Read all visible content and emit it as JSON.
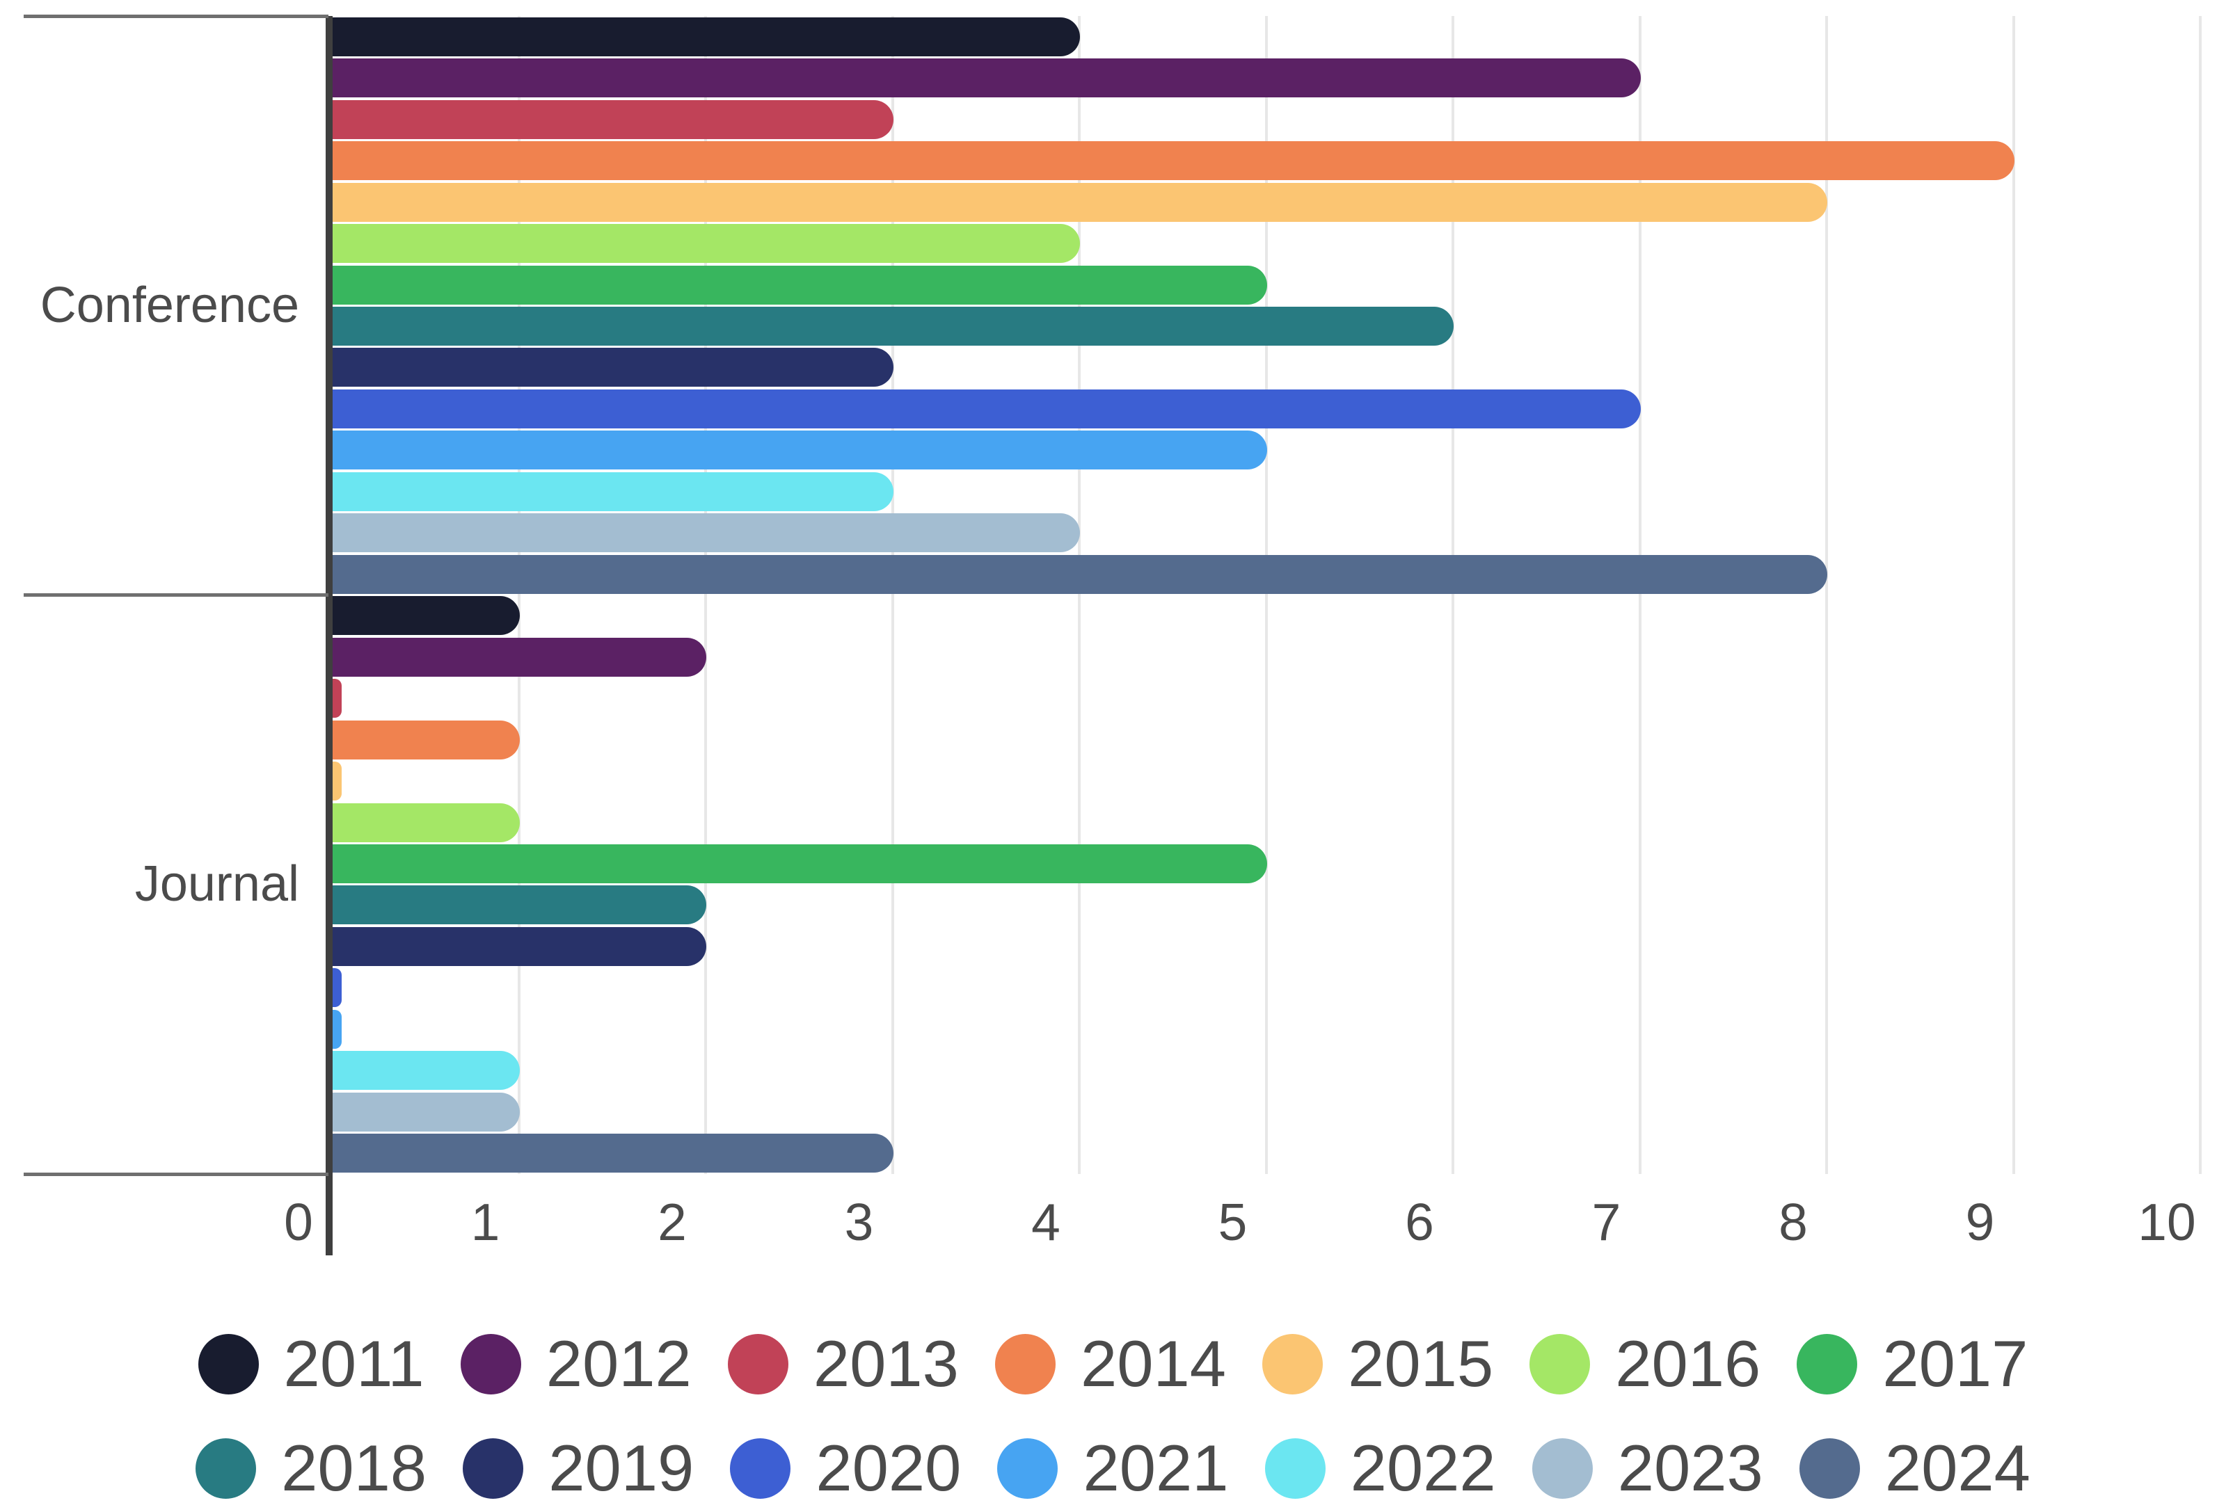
{
  "chart_data": {
    "type": "bar",
    "orientation": "horizontal",
    "title": "",
    "xlabel": "",
    "ylabel": "",
    "categories": [
      "Conference",
      "Journal"
    ],
    "series": [
      {
        "name": "2011",
        "color": "#181c2f",
        "values": [
          4,
          1
        ]
      },
      {
        "name": "2012",
        "color": "#5b2164",
        "values": [
          7,
          2
        ]
      },
      {
        "name": "2013",
        "color": "#c14257",
        "values": [
          3,
          0
        ]
      },
      {
        "name": "2014",
        "color": "#f0824f",
        "values": [
          9,
          1
        ]
      },
      {
        "name": "2015",
        "color": "#fbc572",
        "values": [
          8,
          0
        ]
      },
      {
        "name": "2016",
        "color": "#a4e766",
        "values": [
          4,
          1
        ]
      },
      {
        "name": "2017",
        "color": "#38b65e",
        "values": [
          5,
          5
        ]
      },
      {
        "name": "2018",
        "color": "#287b82",
        "values": [
          6,
          2
        ]
      },
      {
        "name": "2019",
        "color": "#283269",
        "values": [
          3,
          2
        ]
      },
      {
        "name": "2020",
        "color": "#3d5fd3",
        "values": [
          7,
          0
        ]
      },
      {
        "name": "2021",
        "color": "#47a4f2",
        "values": [
          5,
          0
        ]
      },
      {
        "name": "2022",
        "color": "#6be6f1",
        "values": [
          3,
          1
        ]
      },
      {
        "name": "2023",
        "color": "#a3bdd1",
        "values": [
          4,
          1
        ]
      },
      {
        "name": "2024",
        "color": "#546b8e",
        "values": [
          8,
          3
        ]
      }
    ],
    "x_ticks": [
      "0",
      "1",
      "2",
      "3",
      "4",
      "5",
      "6",
      "7",
      "8",
      "9",
      "10"
    ],
    "xlim": [
      0,
      10
    ],
    "grid": true,
    "legend_position": "bottom",
    "legend_rows": [
      [
        "2011",
        "2012",
        "2013",
        "2014",
        "2015",
        "2016",
        "2017"
      ],
      [
        "2018",
        "2019",
        "2020",
        "2021",
        "2022",
        "2023",
        "2024"
      ]
    ]
  },
  "theme": {
    "axis_color": "#3f3f3f",
    "tick_color": "#6f6f6f",
    "grid_color": "#e7e7e7",
    "text_color": "#4b4b4b",
    "background": "#ffffff"
  }
}
